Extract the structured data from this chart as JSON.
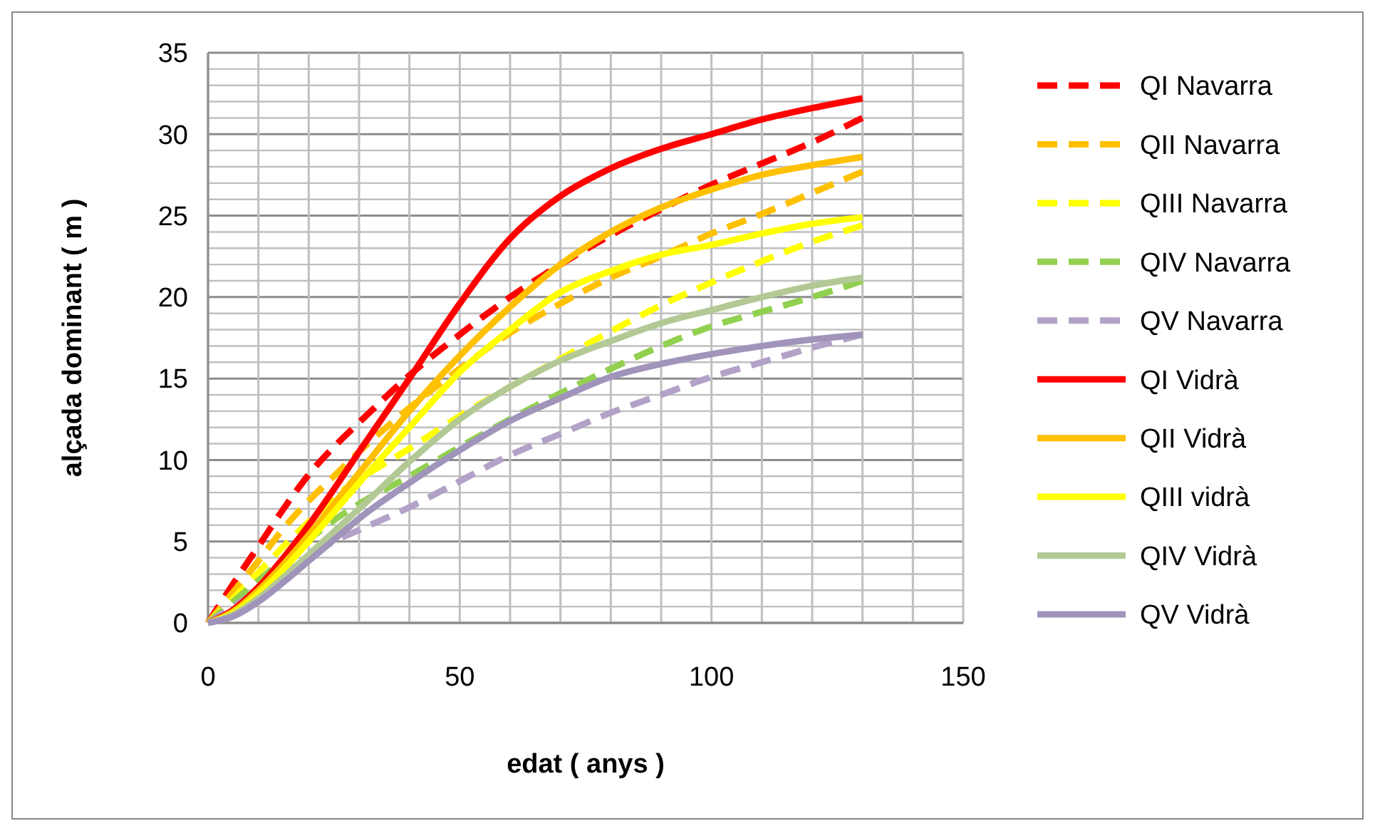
{
  "chart_data": {
    "type": "line",
    "xlabel": "edat ( anys )",
    "ylabel": "alçada dominant ( m )",
    "x": [
      0,
      5,
      10,
      15,
      20,
      25,
      30,
      40,
      50,
      60,
      70,
      80,
      90,
      100,
      110,
      120,
      130
    ],
    "xlim": [
      0,
      150
    ],
    "xticks": [
      0,
      {
        "value": 10,
        "label": null
      },
      {
        "value": 20,
        "label": null
      },
      {
        "value": 30,
        "label": null
      },
      {
        "value": 40,
        "label": null
      },
      50,
      {
        "value": 60,
        "label": null
      },
      {
        "value": 70,
        "label": null
      },
      {
        "value": 80,
        "label": null
      },
      {
        "value": 90,
        "label": null
      },
      100,
      {
        "value": 110,
        "label": null
      },
      {
        "value": 120,
        "label": null
      },
      {
        "value": 130,
        "label": null
      },
      {
        "value": 140,
        "label": null
      },
      150
    ],
    "ylim": [
      0,
      35
    ],
    "yticks": [
      0,
      {
        "value": 1,
        "label": null
      },
      {
        "value": 2,
        "label": null
      },
      {
        "value": 3,
        "label": null
      },
      {
        "value": 4,
        "label": null
      },
      5,
      {
        "value": 6,
        "label": null
      },
      {
        "value": 7,
        "label": null
      },
      {
        "value": 8,
        "label": null
      },
      {
        "value": 9,
        "label": null
      },
      10,
      {
        "value": 11,
        "label": null
      },
      {
        "value": 12,
        "label": null
      },
      {
        "value": 13,
        "label": null
      },
      {
        "value": 14,
        "label": null
      },
      15,
      {
        "value": 16,
        "label": null
      },
      {
        "value": 17,
        "label": null
      },
      {
        "value": 18,
        "label": null
      },
      {
        "value": 19,
        "label": null
      },
      20,
      {
        "value": 21,
        "label": null
      },
      {
        "value": 22,
        "label": null
      },
      {
        "value": 23,
        "label": null
      },
      {
        "value": 24,
        "label": null
      },
      25,
      {
        "value": 26,
        "label": null
      },
      {
        "value": 27,
        "label": null
      },
      {
        "value": 28,
        "label": null
      },
      {
        "value": 29,
        "label": null
      },
      30,
      {
        "value": 31,
        "label": null
      },
      {
        "value": 32,
        "label": null
      },
      {
        "value": 33,
        "label": null
      },
      {
        "value": 34,
        "label": null
      },
      35
    ],
    "grid": true,
    "legend": "right",
    "marker": "none",
    "series": [
      {
        "name": "QI Navarra",
        "color": "#ff0000",
        "line_style": "dashed",
        "values": [
          0,
          2.4,
          4.7,
          7,
          9.1,
          10.8,
          12.3,
          15.2,
          17.7,
          20,
          22,
          23.8,
          25.4,
          26.9,
          28.2,
          29.5,
          31
        ]
      },
      {
        "name": "QII Navarra",
        "color": "#ffc000",
        "line_style": "dashed",
        "values": [
          0,
          1.9,
          3.8,
          5.8,
          7.5,
          9,
          10.5,
          13.2,
          15.6,
          17.8,
          19.6,
          21.2,
          22.5,
          23.9,
          25.1,
          26.4,
          27.7
        ]
      },
      {
        "name": "QIII Navarra",
        "color": "#ffff00",
        "line_style": "dashed",
        "values": [
          0,
          1.5,
          3.1,
          4.7,
          6.2,
          7.7,
          8.8,
          10.7,
          12.7,
          14.5,
          16.2,
          17.9,
          19.5,
          20.9,
          22.2,
          23.4,
          24.4
        ]
      },
      {
        "name": "QIV Navarra",
        "color": "#92d050",
        "line_style": "dashed",
        "values": [
          0,
          1.3,
          2.6,
          3.9,
          5.1,
          6.3,
          7.3,
          9,
          10.8,
          12.5,
          14.1,
          15.6,
          17,
          18.2,
          19.1,
          20,
          21
        ]
      },
      {
        "name": "QV Navarra",
        "color": "#b3a2c7",
        "line_style": "dashed",
        "values": [
          0,
          1,
          2,
          3,
          4,
          5,
          5.7,
          7.1,
          8.7,
          10.3,
          11.6,
          12.9,
          14,
          15.1,
          16,
          16.9,
          17.7
        ]
      },
      {
        "name": "QI Vidrà",
        "color": "#ff0000",
        "line_style": "solid",
        "values": [
          0,
          0.8,
          2.2,
          4,
          6,
          8.2,
          10.5,
          15,
          19.6,
          23.6,
          26.2,
          27.9,
          29.1,
          30,
          30.9,
          31.6,
          32.2
        ]
      },
      {
        "name": "QII Vidrà",
        "color": "#ffc000",
        "line_style": "solid",
        "values": [
          0,
          0.7,
          2,
          3.6,
          5.4,
          7.3,
          9.2,
          13,
          16.4,
          19.4,
          22,
          24,
          25.5,
          26.6,
          27.5,
          28.1,
          28.6
        ]
      },
      {
        "name": "QIII vidrà",
        "color": "#ffff00",
        "line_style": "solid",
        "values": [
          0,
          0.6,
          1.8,
          3.3,
          5,
          6.8,
          8.6,
          12,
          15.4,
          18,
          20.3,
          21.6,
          22.6,
          23.2,
          23.9,
          24.5,
          24.9
        ]
      },
      {
        "name": "QIV Vidrà",
        "color": "#b3c995",
        "line_style": "solid",
        "values": [
          0,
          0.5,
          1.5,
          2.8,
          4.2,
          5.6,
          7,
          9.9,
          12.5,
          14.5,
          16.1,
          17.3,
          18.4,
          19.2,
          20,
          20.7,
          21.2
        ]
      },
      {
        "name": "QV Vidrà",
        "color": "#a094bb",
        "line_style": "solid",
        "values": [
          0,
          0.4,
          1.3,
          2.5,
          3.8,
          5.1,
          6.4,
          8.6,
          10.6,
          12.4,
          13.8,
          15.1,
          15.9,
          16.5,
          17,
          17.4,
          17.7
        ]
      }
    ]
  }
}
